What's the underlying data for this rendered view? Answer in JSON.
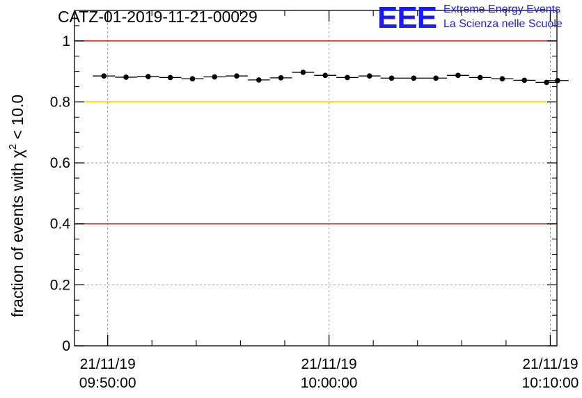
{
  "chart_data": {
    "type": "scatter",
    "title": "CATZ-01-2019-11-21-00029",
    "ylabel_prefix": "fraction of events with χ",
    "ylabel_sup": "2",
    "ylabel_suffix": " < 10.0",
    "xlabel": "",
    "ylim": [
      0,
      1.1
    ],
    "y_ticks": [
      {
        "value": 0,
        "label": "0"
      },
      {
        "value": 0.2,
        "label": "0.2"
      },
      {
        "value": 0.4,
        "label": "0.4"
      },
      {
        "value": 0.6,
        "label": "0.6"
      },
      {
        "value": 0.8,
        "label": "0.8"
      },
      {
        "value": 1,
        "label": "1"
      }
    ],
    "xlim_minutes": [
      -1.5,
      20.3
    ],
    "x_ticks": [
      {
        "minute": 0,
        "date": "21/11/19",
        "time": "09:50:00"
      },
      {
        "minute": 10,
        "date": "21/11/19",
        "time": "10:00:00"
      },
      {
        "minute": 20,
        "date": "21/11/19",
        "time": "10:10:00"
      }
    ],
    "x_minor_ticks": [
      2,
      4,
      6,
      8,
      12,
      14,
      16,
      18
    ],
    "grid": true,
    "reference_lines": [
      {
        "value": 1.0,
        "color": "#e8231e"
      },
      {
        "value": 0.8,
        "color": "#f5c400"
      },
      {
        "value": 0.4,
        "color": "#e8231e"
      }
    ],
    "series": [
      {
        "marker_color": "#000000",
        "points": [
          {
            "minute": -0.17,
            "value": 0.885
          },
          {
            "minute": 0.83,
            "value": 0.881
          },
          {
            "minute": 1.83,
            "value": 0.883
          },
          {
            "minute": 2.83,
            "value": 0.88
          },
          {
            "minute": 3.83,
            "value": 0.876
          },
          {
            "minute": 4.83,
            "value": 0.882
          },
          {
            "minute": 5.83,
            "value": 0.885
          },
          {
            "minute": 6.83,
            "value": 0.872
          },
          {
            "minute": 7.83,
            "value": 0.879
          },
          {
            "minute": 8.83,
            "value": 0.897
          },
          {
            "minute": 9.83,
            "value": 0.887
          },
          {
            "minute": 10.83,
            "value": 0.88
          },
          {
            "minute": 11.83,
            "value": 0.885
          },
          {
            "minute": 12.83,
            "value": 0.878
          },
          {
            "minute": 13.83,
            "value": 0.878
          },
          {
            "minute": 14.83,
            "value": 0.878
          },
          {
            "minute": 15.83,
            "value": 0.887
          },
          {
            "minute": 16.83,
            "value": 0.88
          },
          {
            "minute": 17.83,
            "value": 0.876
          },
          {
            "minute": 18.83,
            "value": 0.871
          },
          {
            "minute": 19.83,
            "value": 0.864
          },
          {
            "minute": 20.33,
            "value": 0.87
          }
        ]
      }
    ]
  },
  "logo": {
    "mark": "EEE",
    "line1": "Extreme Energy Events",
    "line2": "La Scienza nelle Scuole",
    "color": "#1a1aff"
  }
}
